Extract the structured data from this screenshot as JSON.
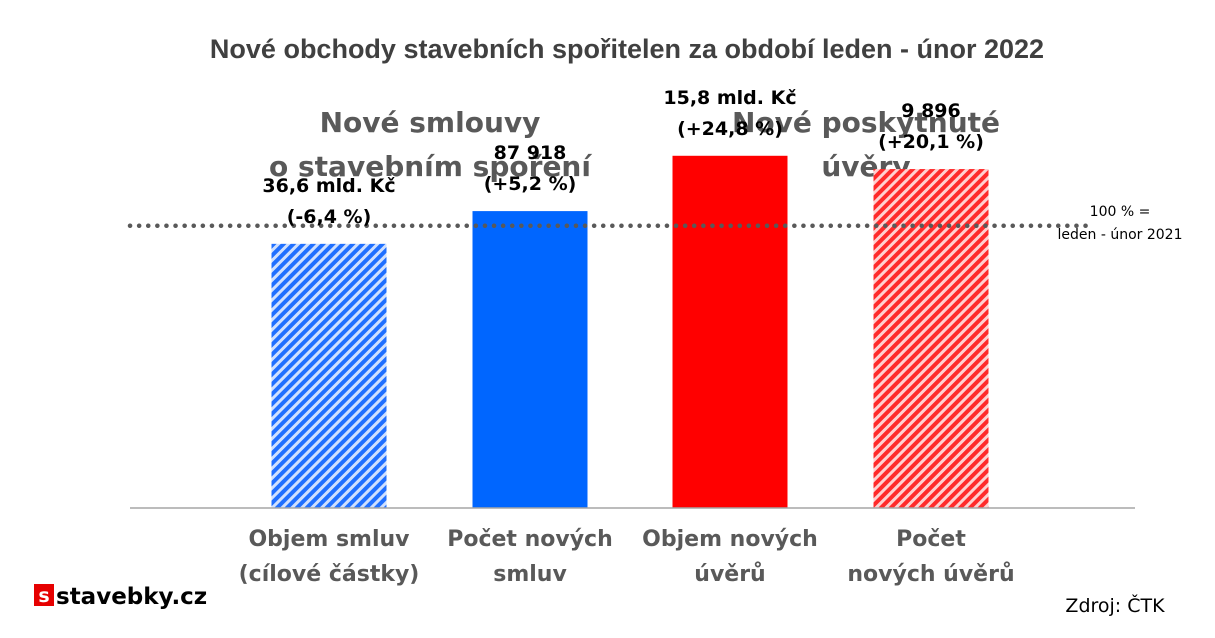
{
  "chart_data": {
    "type": "bar",
    "title": "Nové obchody stavebních spořitelen za období leden - únor 2022",
    "groups": [
      [
        "Nové smlouvy",
        "o stavebním spoření"
      ],
      [
        "Nové poskytnuté",
        "úvěry"
      ]
    ],
    "categories": [
      [
        "Objem smluv",
        "(cílové částky)"
      ],
      [
        "Počet  nových",
        "smluv"
      ],
      [
        "Objem nových",
        "úvěrů"
      ],
      [
        "Počet",
        "nových úvěrů"
      ]
    ],
    "values": [
      93.6,
      105.2,
      124.8,
      120.1
    ],
    "value_labels": [
      [
        "36,6 mld. Kč",
        "(-6,4 %)"
      ],
      [
        "87 918",
        "(+5,2 %)"
      ],
      [
        "15,8 mld. Kč",
        "(+24,8 %)"
      ],
      [
        "9 896",
        "(+20,1 %)"
      ]
    ],
    "bar_styles": [
      "hatched",
      "solid",
      "solid",
      "hatched"
    ],
    "bar_colors": [
      "#1f6fff",
      "#0066ff",
      "#ff0000",
      "#ff2a2a"
    ],
    "reference_line": {
      "value": 100,
      "label": [
        "100 % =",
        "leden - únor 2021"
      ],
      "style": "dotted"
    },
    "ylim": [
      0,
      135
    ],
    "grid": false,
    "legend": "none"
  },
  "source": "Zdroj: ČTK",
  "logo": {
    "text": "stavebky.cz",
    "mark": "s"
  }
}
